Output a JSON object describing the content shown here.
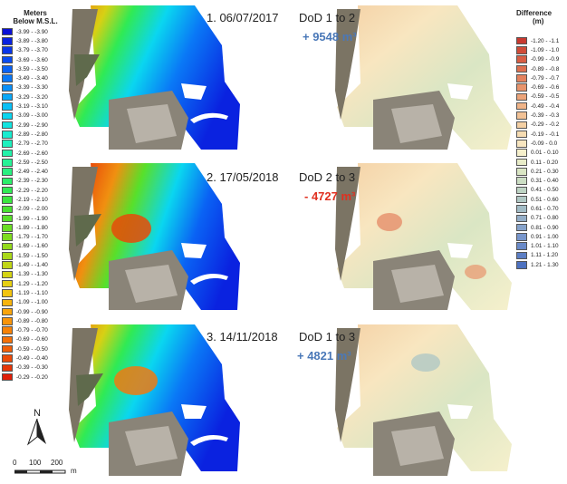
{
  "left_legend": {
    "title_line1": "Meters",
    "title_line2": "Below M.S.L.",
    "entries": [
      {
        "label": "-3.99 - -3.90",
        "color": "#0a10d6"
      },
      {
        "label": "-3.89 - -3.80",
        "color": "#0a22e0"
      },
      {
        "label": "-3.79 - -3.70",
        "color": "#0a36e8"
      },
      {
        "label": "-3.69 - -3.60",
        "color": "#0a4cf0"
      },
      {
        "label": "-3.59 - -3.50",
        "color": "#0a62f4"
      },
      {
        "label": "-3.49 - -3.40",
        "color": "#0a78f6"
      },
      {
        "label": "-3.39 - -3.30",
        "color": "#0a90f8"
      },
      {
        "label": "-3.29 - -3.20",
        "color": "#0aa8f8"
      },
      {
        "label": "-3.19 - -3.10",
        "color": "#0ac0f6"
      },
      {
        "label": "-3.09 - -3.00",
        "color": "#0ad6f0"
      },
      {
        "label": "-2.99 - -2.90",
        "color": "#12e4e0"
      },
      {
        "label": "-2.89 - -2.80",
        "color": "#18ecd0"
      },
      {
        "label": "-2.79 - -2.70",
        "color": "#1ef0be"
      },
      {
        "label": "-2.69 - -2.60",
        "color": "#22f2aa"
      },
      {
        "label": "-2.59 - -2.50",
        "color": "#26f296"
      },
      {
        "label": "-2.49 - -2.40",
        "color": "#28f080"
      },
      {
        "label": "-2.39 - -2.30",
        "color": "#2aee6a"
      },
      {
        "label": "-2.29 - -2.20",
        "color": "#30ea54"
      },
      {
        "label": "-2.19 - -2.10",
        "color": "#3ae640"
      },
      {
        "label": "-2.09 - -2.00",
        "color": "#48e232"
      },
      {
        "label": "-1.99 - -1.90",
        "color": "#58e02a"
      },
      {
        "label": "-1.89 - -1.80",
        "color": "#6ade24"
      },
      {
        "label": "-1.79 - -1.70",
        "color": "#7edc20"
      },
      {
        "label": "-1.69 - -1.60",
        "color": "#94da1c"
      },
      {
        "label": "-1.59 - -1.50",
        "color": "#aad81a"
      },
      {
        "label": "-1.49 - -1.40",
        "color": "#c0d616"
      },
      {
        "label": "-1.39 - -1.30",
        "color": "#d4d414"
      },
      {
        "label": "-1.29 - -1.20",
        "color": "#e6d012"
      },
      {
        "label": "-1.19 - -1.10",
        "color": "#f2c410"
      },
      {
        "label": "-1.09 - -1.00",
        "color": "#f6b40e"
      },
      {
        "label": "-0.99 - -0.90",
        "color": "#f8a40c"
      },
      {
        "label": "-0.89 - -0.80",
        "color": "#f8940a"
      },
      {
        "label": "-0.79 - -0.70",
        "color": "#f68208"
      },
      {
        "label": "-0.69 - -0.60",
        "color": "#f47008"
      },
      {
        "label": "-0.59 - -0.50",
        "color": "#f05e08"
      },
      {
        "label": "-0.49 - -0.40",
        "color": "#ec4a08"
      },
      {
        "label": "-0.39 - -0.30",
        "color": "#e63608"
      },
      {
        "label": "-0.29 - -0.20",
        "color": "#e01e08"
      }
    ]
  },
  "right_legend": {
    "title_line1": "Difference",
    "title_line2": "(m)",
    "entries": [
      {
        "label": "-1.20 - -1.1",
        "color": "#c83a30"
      },
      {
        "label": "-1.09 - -1.0",
        "color": "#d04c38"
      },
      {
        "label": "-0.99 - -0.9",
        "color": "#d85e44"
      },
      {
        "label": "-0.89 - -0.8",
        "color": "#de7050"
      },
      {
        "label": "-0.79 - -0.7",
        "color": "#e4825e"
      },
      {
        "label": "-0.69 - -0.6",
        "color": "#e8946c"
      },
      {
        "label": "-0.59 - -0.5",
        "color": "#eca47a"
      },
      {
        "label": "-0.49 - -0.4",
        "color": "#f0b488"
      },
      {
        "label": "-0.39 - -0.3",
        "color": "#f2c296"
      },
      {
        "label": "-0.29 - -0.2",
        "color": "#f4d0a4"
      },
      {
        "label": "-0.19 - -0.1",
        "color": "#f6dcb2"
      },
      {
        "label": "-0.09 - 0.0",
        "color": "#f8e6c0"
      },
      {
        "label": "0.01 - 0.10",
        "color": "#f6f0cc"
      },
      {
        "label": "0.11 - 0.20",
        "color": "#e8ecc8"
      },
      {
        "label": "0.21 - 0.30",
        "color": "#dae6c4"
      },
      {
        "label": "0.31 - 0.40",
        "color": "#ccdec4"
      },
      {
        "label": "0.41 - 0.50",
        "color": "#bed4c4"
      },
      {
        "label": "0.51 - 0.60",
        "color": "#b0c8c4"
      },
      {
        "label": "0.61 - 0.70",
        "color": "#a2bcc6"
      },
      {
        "label": "0.71 - 0.80",
        "color": "#94aec8"
      },
      {
        "label": "0.81 - 0.90",
        "color": "#86a2ca"
      },
      {
        "label": "0.91 - 1.00",
        "color": "#7896cc"
      },
      {
        "label": "1.01 - 1.10",
        "color": "#6a8ac8"
      },
      {
        "label": "1.11 - 1.20",
        "color": "#5c7ec4"
      },
      {
        "label": "1.21 - 1.30",
        "color": "#4e72c0"
      }
    ]
  },
  "panels": [
    {
      "title": "1. 06/07/2017",
      "dod": "DoD 1 to 2",
      "volume": "+ 9548 m³",
      "volume_color": "#4a78b8"
    },
    {
      "title": "2. 17/05/2018",
      "dod": "DoD 2 to 3",
      "volume": "- 4727 m³",
      "volume_color": "#e03020"
    },
    {
      "title": "3. 14/11/2018",
      "dod": "DoD 1 to 3",
      "volume": "+ 4821 m³",
      "volume_color": "#4a78b8"
    }
  ],
  "north_label": "N",
  "scale": {
    "labels": [
      "0",
      "100",
      "200"
    ],
    "unit": "m"
  },
  "colors": {
    "aerial_land": "#8a8478",
    "aerial_beach": "#c8c4bc",
    "water_white": "#ffffff"
  }
}
